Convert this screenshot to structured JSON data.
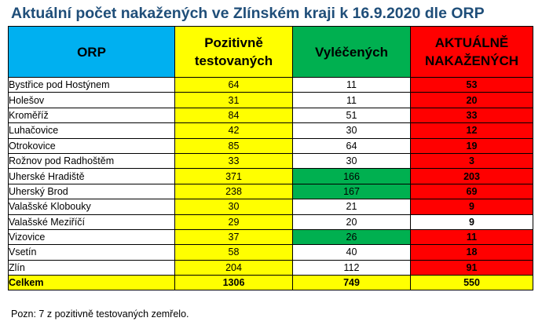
{
  "title": "Aktuální počet nakažených ve Zlínském kraji k 16.9.2020 dle ORP",
  "headers": {
    "orp": "ORP",
    "positive": "Pozitivně testovaných",
    "recovered": "Vyléčených",
    "current": "AKTUÁLNĚ NAKAŽENÝCH"
  },
  "colors": {
    "header_orp": "#00b0f0",
    "positive": "#ffff00",
    "recovered_highlight": "#00b050",
    "current": "#ff0000",
    "title": "#1f4e79"
  },
  "rows": [
    {
      "orp": "Bystřice pod Hostýnem",
      "positive": "64",
      "recovered": "11",
      "current": "53",
      "recovered_hl": false,
      "current_white": false
    },
    {
      "orp": "Holešov",
      "positive": "31",
      "recovered": "11",
      "current": "20",
      "recovered_hl": false,
      "current_white": false
    },
    {
      "orp": "Kroměříž",
      "positive": "84",
      "recovered": "51",
      "current": "33",
      "recovered_hl": false,
      "current_white": false
    },
    {
      "orp": "Luhačovice",
      "positive": "42",
      "recovered": "30",
      "current": "12",
      "recovered_hl": false,
      "current_white": false
    },
    {
      "orp": "Otrokovice",
      "positive": "85",
      "recovered": "64",
      "current": "19",
      "recovered_hl": false,
      "current_white": false
    },
    {
      "orp": "Rožnov pod Radhoštěm",
      "positive": "33",
      "recovered": "30",
      "current": "3",
      "recovered_hl": false,
      "current_white": false
    },
    {
      "orp": "Uherské Hradiště",
      "positive": "371",
      "recovered": "166",
      "current": "203",
      "recovered_hl": true,
      "current_white": false
    },
    {
      "orp": "Uherský Brod",
      "positive": "238",
      "recovered": "167",
      "current": "69",
      "recovered_hl": true,
      "current_white": false
    },
    {
      "orp": "Valašské Klobouky",
      "positive": "30",
      "recovered": "21",
      "current": "9",
      "recovered_hl": false,
      "current_white": false
    },
    {
      "orp": "Valašské Meziříčí",
      "positive": "29",
      "recovered": "20",
      "current": "9",
      "recovered_hl": false,
      "current_white": true
    },
    {
      "orp": "Vizovice",
      "positive": "37",
      "recovered": "26",
      "current": "11",
      "recovered_hl": true,
      "current_white": false
    },
    {
      "orp": "Vsetín",
      "positive": "58",
      "recovered": "40",
      "current": "18",
      "recovered_hl": false,
      "current_white": false
    },
    {
      "orp": "Zlín",
      "positive": "204",
      "recovered": "112",
      "current": "91",
      "recovered_hl": false,
      "current_white": false
    }
  ],
  "total": {
    "orp": "Celkem",
    "positive": "1306",
    "recovered": "749",
    "current": "550"
  },
  "note": "Pozn: 7 z pozitivně testovaných zemřelo."
}
